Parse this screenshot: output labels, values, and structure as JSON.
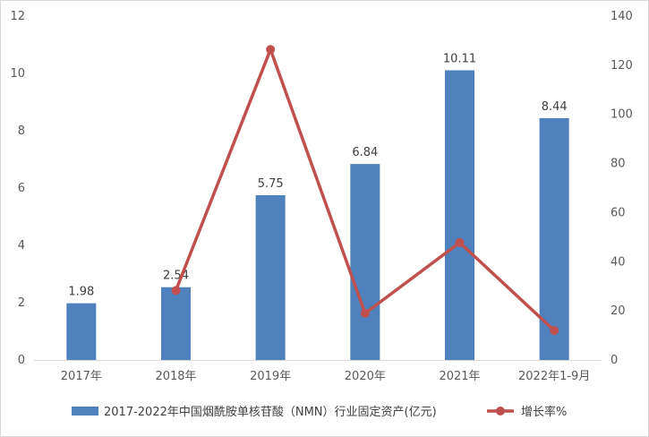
{
  "chart_data": {
    "type": "bar",
    "categories": [
      "2017年",
      "2018年",
      "2019年",
      "2020年",
      "2021年",
      "2022年1-9月"
    ],
    "series": [
      {
        "name": "2017-2022年中国烟酰胺单核苷酸（NMN）行业固定资产(亿元)",
        "type": "bar",
        "axis": "left",
        "values": [
          1.98,
          2.54,
          5.75,
          6.84,
          10.11,
          8.44
        ],
        "labels": [
          "1.98",
          "2.54",
          "5.75",
          "6.84",
          "10.11",
          "8.44"
        ],
        "color": "#4f81bd"
      },
      {
        "name": "增长率%",
        "type": "line",
        "axis": "right",
        "values": [
          null,
          28.3,
          126.4,
          19.0,
          47.8,
          12.0
        ],
        "color": "#c0504d"
      }
    ],
    "y_left": {
      "min": 0,
      "max": 12,
      "ticks": [
        0,
        2,
        4,
        6,
        8,
        10,
        12
      ]
    },
    "y_right": {
      "min": 0,
      "max": 140,
      "ticks": [
        0,
        20,
        40,
        60,
        80,
        100,
        120,
        140
      ]
    },
    "legend": "bottom",
    "grid": false
  }
}
